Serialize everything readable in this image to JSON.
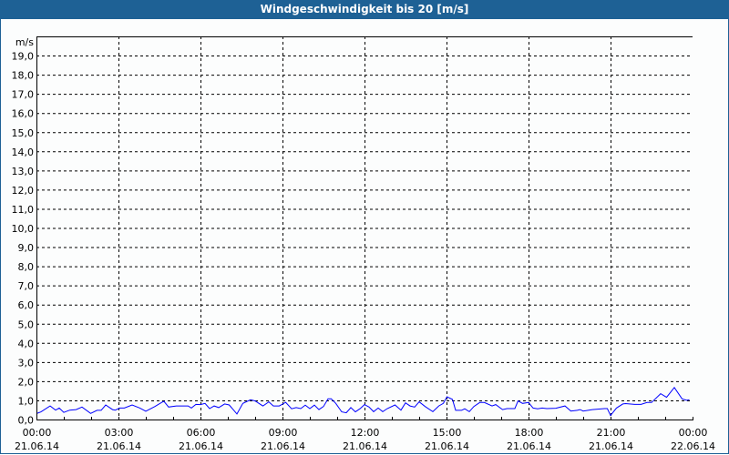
{
  "title": "Windgeschwindigkeit bis 20 [m/s]",
  "colors": {
    "title_bar": "#1e6195",
    "series": "#0000ff",
    "grid": "#000000"
  },
  "chart_data": {
    "type": "line",
    "title": "Windgeschwindigkeit bis 20 [m/s]",
    "ylabel": "m/s",
    "xlabel": "",
    "ylim": [
      0,
      20
    ],
    "xlim": [
      "21.06.14 00:00",
      "22.06.14 00:00"
    ],
    "grid": true,
    "y_ticks": [
      "0,0",
      "1,0",
      "2,0",
      "3,0",
      "4,0",
      "5,0",
      "6,0",
      "7,0",
      "8,0",
      "9,0",
      "10,0",
      "11,0",
      "12,0",
      "13,0",
      "14,0",
      "15,0",
      "16,0",
      "17,0",
      "18,0",
      "19,0"
    ],
    "x_ticks": [
      {
        "time": "00:00",
        "date": "21.06.14"
      },
      {
        "time": "03:00",
        "date": "21.06.14"
      },
      {
        "time": "06:00",
        "date": "21.06.14"
      },
      {
        "time": "09:00",
        "date": "21.06.14"
      },
      {
        "time": "12:00",
        "date": "21.06.14"
      },
      {
        "time": "15:00",
        "date": "21.06.14"
      },
      {
        "time": "18:00",
        "date": "21.06.14"
      },
      {
        "time": "21:00",
        "date": "21.06.14"
      },
      {
        "time": "00:00",
        "date": "22.06.14"
      }
    ],
    "series": [
      {
        "x": [
          "00:02",
          "00:10",
          "00:30",
          "00:42",
          "00:50",
          "01:00",
          "01:13",
          "01:27",
          "01:40",
          "01:59",
          "02:13",
          "02:22",
          "02:32",
          "02:47",
          "02:53",
          "03:03",
          "03:13",
          "03:30",
          "03:47",
          "04:00",
          "04:20",
          "04:37",
          "04:40",
          "04:50",
          "05:07",
          "05:33",
          "05:40",
          "05:50",
          "06:00",
          "06:10",
          "06:20",
          "06:30",
          "06:40",
          "06:53",
          "07:03",
          "07:20",
          "07:33",
          "07:50",
          "08:00",
          "08:17",
          "08:30",
          "08:40",
          "08:53",
          "09:07",
          "09:20",
          "09:30",
          "09:40",
          "09:50",
          "10:00",
          "10:10",
          "10:20",
          "10:30",
          "10:40",
          "10:47",
          "10:57",
          "11:10",
          "11:20",
          "11:30",
          "11:40",
          "11:50",
          "12:00",
          "12:10",
          "12:20",
          "12:30",
          "12:40",
          "12:50",
          "13:07",
          "13:20",
          "13:30",
          "13:40",
          "13:50",
          "14:00",
          "14:13",
          "14:30",
          "14:43",
          "14:53",
          "15:01",
          "15:13",
          "15:20",
          "15:33",
          "15:40",
          "15:50",
          "16:00",
          "16:13",
          "16:23",
          "16:40",
          "16:48",
          "17:03",
          "17:13",
          "17:30",
          "17:37",
          "17:47",
          "18:00",
          "18:10",
          "18:20",
          "18:30",
          "18:40",
          "19:00",
          "19:20",
          "19:33",
          "19:47",
          "19:53",
          "20:00",
          "20:20",
          "20:47",
          "20:53",
          "21:00",
          "21:13",
          "21:27",
          "21:33",
          "21:53",
          "22:07",
          "22:20",
          "22:30",
          "22:50",
          "23:03",
          "23:20",
          "23:37",
          "23:47",
          "23:53"
        ],
        "y": [
          0.33,
          0.4,
          0.71,
          0.49,
          0.6,
          0.37,
          0.49,
          0.52,
          0.65,
          0.32,
          0.48,
          0.48,
          0.76,
          0.52,
          0.49,
          0.6,
          0.6,
          0.76,
          0.6,
          0.43,
          0.68,
          0.92,
          0.94,
          0.65,
          0.71,
          0.71,
          0.6,
          0.79,
          0.78,
          0.84,
          0.57,
          0.71,
          0.62,
          0.81,
          0.76,
          0.29,
          0.84,
          1.03,
          0.97,
          0.71,
          0.92,
          0.71,
          0.71,
          0.9,
          0.56,
          0.62,
          0.57,
          0.75,
          0.57,
          0.75,
          0.52,
          0.68,
          1.08,
          1.08,
          0.84,
          0.4,
          0.35,
          0.62,
          0.4,
          0.56,
          0.78,
          0.65,
          0.41,
          0.6,
          0.41,
          0.57,
          0.76,
          0.49,
          0.87,
          0.71,
          0.65,
          0.92,
          0.68,
          0.41,
          0.71,
          0.84,
          1.19,
          1.05,
          0.48,
          0.48,
          0.56,
          0.41,
          0.68,
          0.89,
          0.89,
          0.71,
          0.78,
          0.52,
          0.57,
          0.57,
          0.97,
          0.84,
          0.89,
          0.6,
          0.56,
          0.6,
          0.57,
          0.59,
          0.71,
          0.44,
          0.48,
          0.52,
          0.44,
          0.52,
          0.57,
          0.57,
          0.21,
          0.6,
          0.81,
          0.83,
          0.79,
          0.79,
          0.89,
          0.89,
          1.35,
          1.16,
          1.67,
          1.08,
          1.0,
          1.03
        ]
      }
    ]
  }
}
